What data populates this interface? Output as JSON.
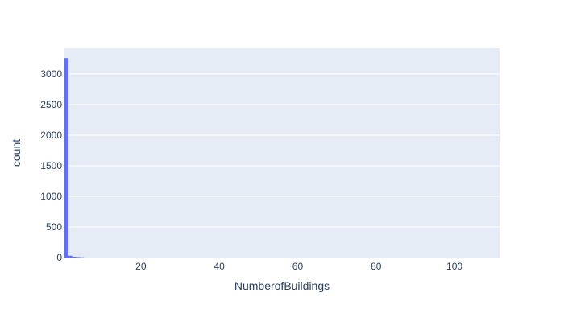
{
  "chart_data": {
    "type": "bar",
    "xlabel": "NumberofBuildings",
    "ylabel": "count",
    "x_range": [
      0.5,
      111.5
    ],
    "y_range": [
      0,
      3420
    ],
    "x_ticks": [
      20,
      40,
      60,
      80,
      100
    ],
    "y_ticks": [
      0,
      500,
      1000,
      1500,
      2000,
      2500,
      3000
    ],
    "bin_width": 1,
    "bins": [
      {
        "x": 1,
        "count": 3260
      },
      {
        "x": 2,
        "count": 30
      },
      {
        "x": 3,
        "count": 14
      },
      {
        "x": 4,
        "count": 8
      },
      {
        "x": 5,
        "count": 4
      }
    ],
    "grid": true,
    "colors": {
      "bar": "#636efa",
      "plot_bg": "#e5ecf6",
      "grid": "#ffffff",
      "text": "#2a3f5f"
    }
  }
}
